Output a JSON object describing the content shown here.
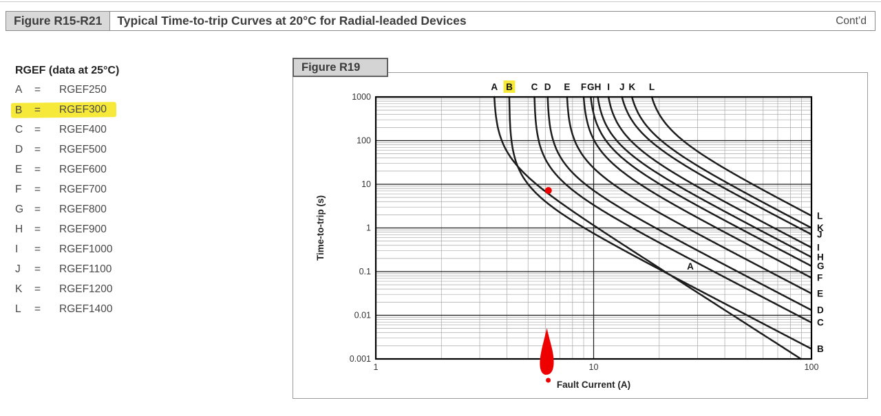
{
  "header": {
    "figure_range": "Figure R15-R21",
    "title": "Typical Time-to-trip Curves at 20°C for Radial-leaded Devices",
    "contd": "Cont’d"
  },
  "legend": {
    "title": "RGEF (data at 25°C)",
    "equals_sign": "=",
    "items": [
      {
        "key": "A",
        "name": "RGEF250",
        "highlighted": false
      },
      {
        "key": "B",
        "name": "RGEF300",
        "highlighted": true
      },
      {
        "key": "C",
        "name": "RGEF400",
        "highlighted": false
      },
      {
        "key": "D",
        "name": "RGEF500",
        "highlighted": false
      },
      {
        "key": "E",
        "name": "RGEF600",
        "highlighted": false
      },
      {
        "key": "F",
        "name": "RGEF700",
        "highlighted": false
      },
      {
        "key": "G",
        "name": "RGEF800",
        "highlighted": false
      },
      {
        "key": "H",
        "name": "RGEF900",
        "highlighted": false
      },
      {
        "key": "I",
        "name": "RGEF1000",
        "highlighted": false
      },
      {
        "key": "J",
        "name": "RGEF1100",
        "highlighted": false
      },
      {
        "key": "K",
        "name": "RGEF1200",
        "highlighted": false
      },
      {
        "key": "L",
        "name": "RGEF1400",
        "highlighted": false
      }
    ]
  },
  "colors": {
    "highlight_yellow": "#f6e93a",
    "curve": "#1c1c1c",
    "red_annotation": "#ee0000",
    "grid_minor": "#a6a6a6",
    "grid_major": "#1a1a1a",
    "text": "#3d3d3d"
  },
  "chart_data": {
    "type": "line",
    "title": "Figure R19",
    "xlabel": "Fault Current (A)",
    "ylabel": "Time-to-trip (s)",
    "x_scale": "log",
    "y_scale": "log",
    "xlim": [
      1,
      100
    ],
    "ylim": [
      0.001,
      1000
    ],
    "x_tick_labels": [
      "1",
      "10",
      "100"
    ],
    "y_tick_labels": [
      "1000",
      "100",
      "10",
      "1",
      "0.1",
      "0.01",
      "0.001"
    ],
    "grid": "log minor gridlines and decade major gridlines on both axes",
    "series_note": "t(I) = K/(I^n - Ih^n); i_top = fault current (A) where curve reaches 1000 s (top edge); t_100 = time-to-trip (s) where curve meets the 100 A right edge",
    "series": [
      {
        "label": "A",
        "device": "RGEF250",
        "i_top": 3.5,
        "t_100": 0.0007,
        "n": 3.2
      },
      {
        "label": "B",
        "device": "RGEF300",
        "i_top": 4.1,
        "t_100": 0.0017,
        "n": 2.6,
        "highlighted": true
      },
      {
        "label": "C",
        "device": "RGEF400",
        "i_top": 5.35,
        "t_100": 0.0068,
        "n": 2.6
      },
      {
        "label": "D",
        "device": "RGEF500",
        "i_top": 6.15,
        "t_100": 0.0131,
        "n": 2.6
      },
      {
        "label": "E",
        "device": "RGEF600",
        "i_top": 7.55,
        "t_100": 0.0315,
        "n": 2.6
      },
      {
        "label": "F",
        "device": "RGEF700",
        "i_top": 9.0,
        "t_100": 0.072,
        "n": 2.6
      },
      {
        "label": "G",
        "device": "RGEF800",
        "i_top": 9.7,
        "t_100": 0.134,
        "n": 2.6
      },
      {
        "label": "H",
        "device": "RGEF900",
        "i_top": 10.45,
        "t_100": 0.214,
        "n": 2.6
      },
      {
        "label": "I",
        "device": "RGEF1000",
        "i_top": 11.7,
        "t_100": 0.355,
        "n": 2.6
      },
      {
        "label": "J",
        "device": "RGEF1100",
        "i_top": 13.5,
        "t_100": 0.71,
        "n": 2.6
      },
      {
        "label": "K",
        "device": "RGEF1200",
        "i_top": 15.0,
        "t_100": 1.0,
        "n": 2.6
      },
      {
        "label": "L",
        "device": "RGEF1400",
        "i_top": 18.5,
        "t_100": 1.9,
        "n": 2.6
      }
    ],
    "inline_label": {
      "label": "A",
      "i": 27.8,
      "t": 0.13
    },
    "annotations": {
      "red_point": {
        "i": 6.2,
        "t": 7.2
      },
      "red_axis_marker": {
        "i": 6.1,
        "note": "hand-drawn red up-arrow mark on the fault-current axis"
      }
    }
  }
}
